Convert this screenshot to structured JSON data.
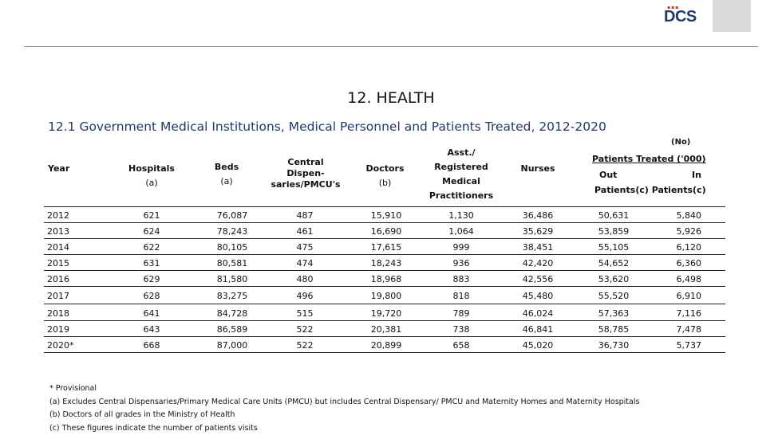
{
  "header": {
    "logo_text": "DCS",
    "logo_dots": "▪▪▪"
  },
  "page": {
    "title": "12. HEALTH",
    "subtitle": "12.1 Government Medical Institutions, Medical Personnel and Patients Treated, 2012-2020",
    "unit": "(No)"
  },
  "table": {
    "columns": {
      "year": "Year",
      "hospitals": "Hospitals",
      "hospitals_note": "(a)",
      "beds": "Beds",
      "beds_note": "(a)",
      "central_1": "Central",
      "central_2": "Dispen-",
      "central_3": "saries/PMCU's",
      "doctors": "Doctors",
      "doctors_note": "(b)",
      "asst_1": "Asst./",
      "asst_2": "Registered",
      "asst_3": "Medical",
      "asst_4": "Practitioners",
      "nurses": "Nurses",
      "patients_treated": "Patients Treated ('000)",
      "out": "Out",
      "in": "In",
      "patients_sub": "Patients(c) Patients(c)"
    },
    "rows": [
      {
        "year": "2012",
        "hospitals": "621",
        "beds": "76,087",
        "central": "487",
        "doctors": "15,910",
        "asst": "1,130",
        "nurses": "36,486",
        "out": "50,631",
        "in": "5,840"
      },
      {
        "year": "2013",
        "hospitals": "624",
        "beds": "78,243",
        "central": "461",
        "doctors": "16,690",
        "asst": "1,064",
        "nurses": "35,629",
        "out": "53,859",
        "in": "5,926"
      },
      {
        "year": "2014",
        "hospitals": "622",
        "beds": "80,105",
        "central": "475",
        "doctors": "17,615",
        "asst": "999",
        "nurses": "38,451",
        "out": "55,105",
        "in": "6,120"
      },
      {
        "year": "2015",
        "hospitals": "631",
        "beds": "80,581",
        "central": "474",
        "doctors": "18,243",
        "asst": "936",
        "nurses": "42,420",
        "out": "54,652",
        "in": "6,360"
      },
      {
        "year": "2016",
        "hospitals": "629",
        "beds": "81,580",
        "central": "480",
        "doctors": "18,968",
        "asst": "883",
        "nurses": "42,556",
        "out": "53,620",
        "in": "6,498"
      },
      {
        "year": "2017",
        "hospitals": "628",
        "beds": "83,275",
        "central": "496",
        "doctors": "19,800",
        "asst": "818",
        "nurses": "45,480",
        "out": "55,520",
        "in": "6,910"
      },
      {
        "year": "2018",
        "hospitals": "641",
        "beds": "84,728",
        "central": "515",
        "doctors": "19,720",
        "asst": "789",
        "nurses": "46,024",
        "out": "57,363",
        "in": "7,116"
      },
      {
        "year": "2019",
        "hospitals": "643",
        "beds": "86,589",
        "central": "522",
        "doctors": "20,381",
        "asst": "738",
        "nurses": "46,841",
        "out": "58,785",
        "in": "7,478"
      },
      {
        "year": "2020*",
        "hospitals": "668",
        "beds": "87,000",
        "central": "522",
        "doctors": "20,899",
        "asst": "658",
        "nurses": "45,020",
        "out": "36,730",
        "in": "5,737"
      }
    ]
  },
  "notes": [
    "* Provisional",
    "(a) Excludes Central Dispensaries/Primary Medical Care Units (PMCU) but includes Central Dispensary/ PMCU and Maternity Homes and  Maternity Hospitals",
    "(b) Doctors of all grades in the Ministry of Health",
    "(c) These figures indicate the number of patients visits"
  ]
}
